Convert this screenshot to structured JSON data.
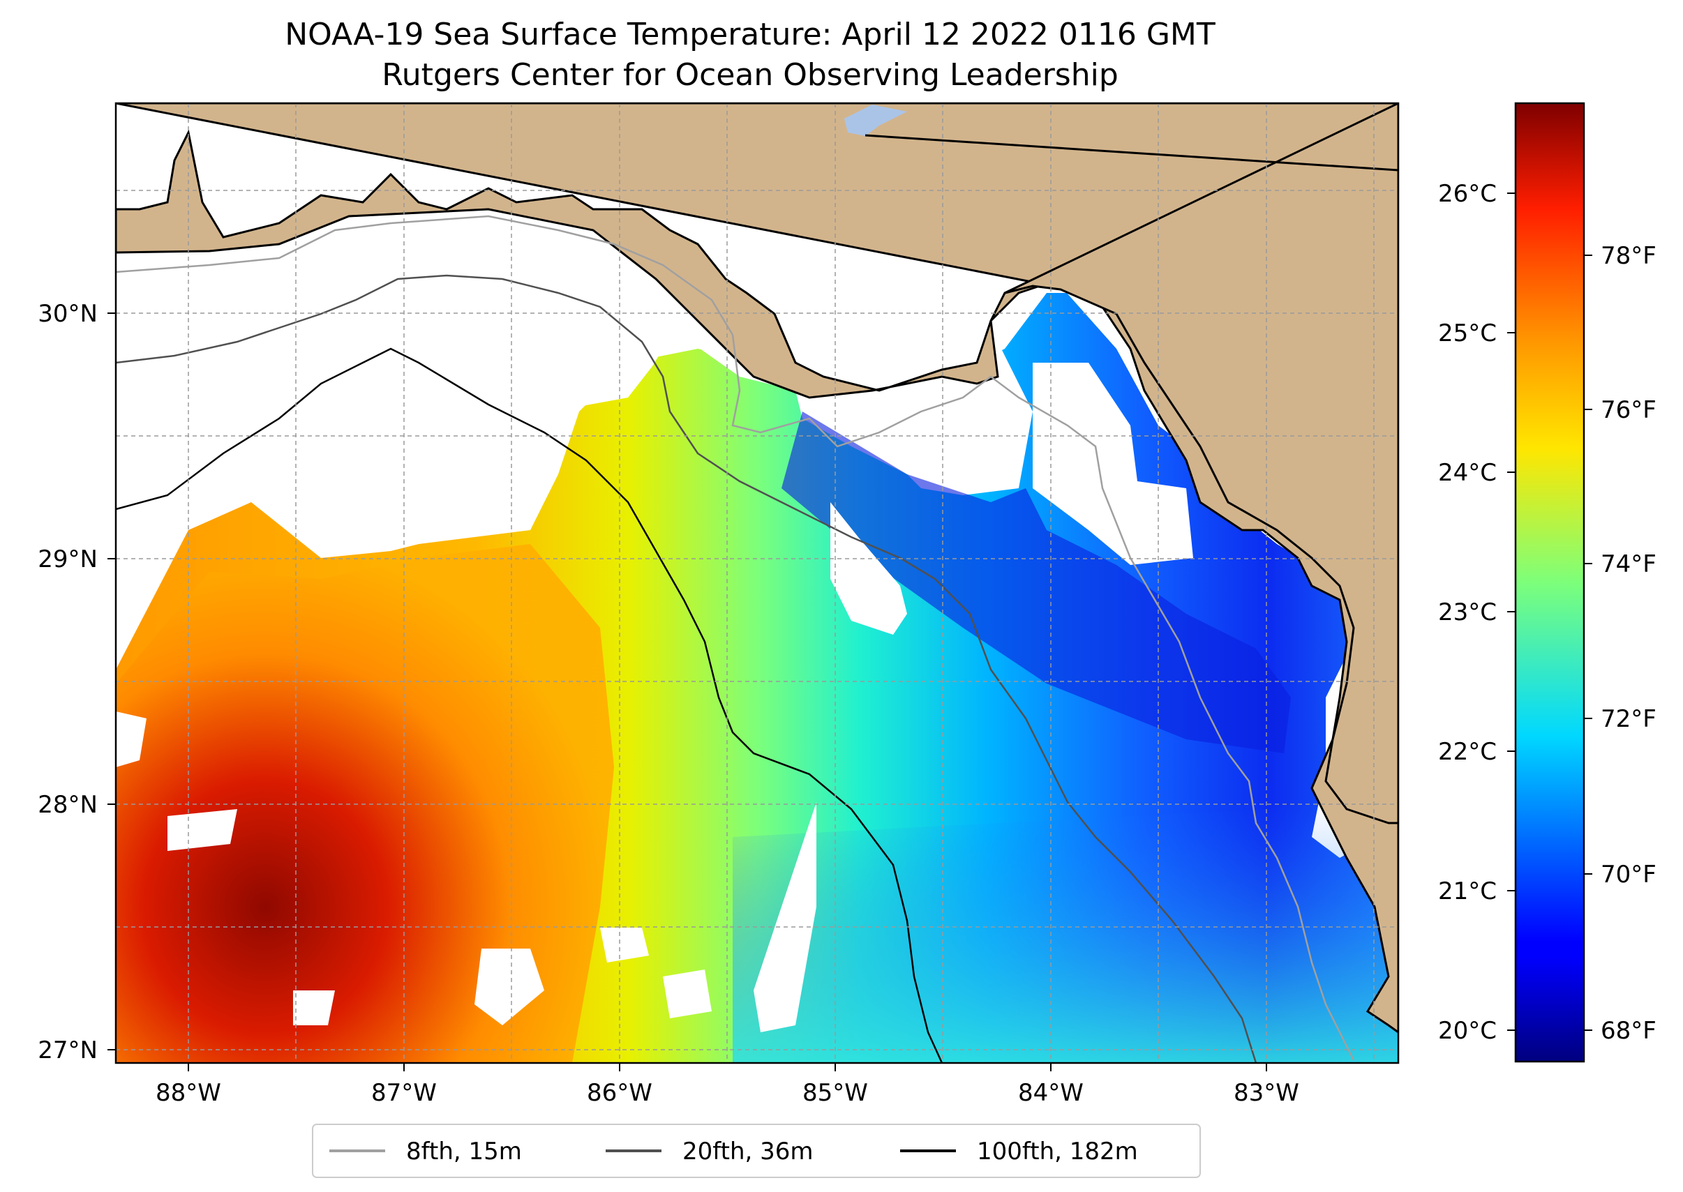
{
  "title": {
    "line1": "NOAA-19 Sea Surface Temperature: April 12 2022 0116 GMT",
    "line2": "Rutgers Center for Ocean Observing Leadership"
  },
  "map": {
    "lon_range": [
      -88.35,
      -82.4
    ],
    "lat_range": [
      26.95,
      30.85
    ],
    "x_ticks": [
      "88°W",
      "87°W",
      "86°W",
      "85°W",
      "84°W",
      "83°W"
    ],
    "y_ticks": [
      "27°N",
      "28°N",
      "29°N",
      "30°N"
    ],
    "gridlines": "dashed",
    "colors": {
      "land": "#d2b48c",
      "no_data": "#ffffff",
      "lake": "#aac4e8",
      "coast": "#000000"
    }
  },
  "colorbar": {
    "colormap": "jet",
    "celsius_ticks": [
      "20°C",
      "21°C",
      "22°C",
      "23°C",
      "24°C",
      "25°C",
      "26°C"
    ],
    "fahrenheit_ticks": [
      "68°F",
      "70°F",
      "72°F",
      "74°F",
      "76°F",
      "78°F"
    ]
  },
  "legend": {
    "placement": "bottom-center",
    "items": [
      {
        "label": "8fth, 15m",
        "color": "#a0a0a0"
      },
      {
        "label": "20fth, 36m",
        "color": "#505050"
      },
      {
        "label": "100fth, 182m",
        "color": "#000000"
      }
    ]
  }
}
